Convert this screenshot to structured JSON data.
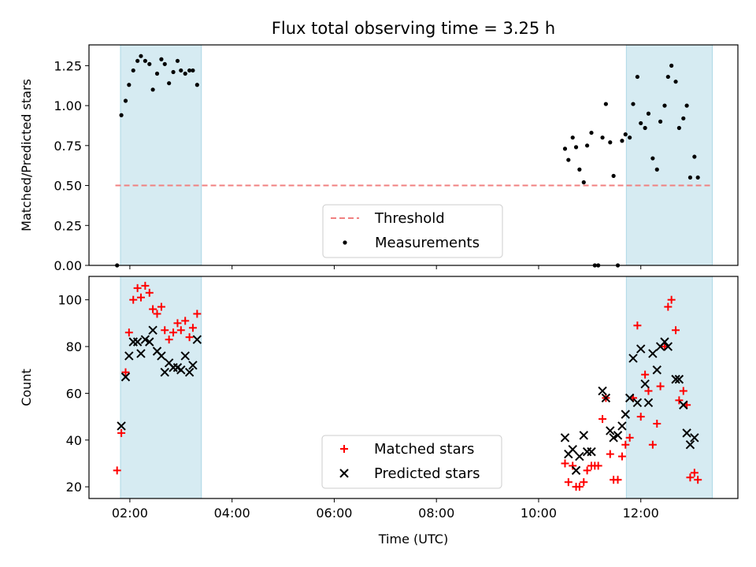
{
  "title": "Flux total observing time = 3.25 h",
  "colors": {
    "observing_band": "#add8e6",
    "threshold": "#f08080",
    "measurement": "#000000",
    "matched": "#ff0000",
    "predicted": "#000000"
  },
  "chart_data": [
    {
      "type": "scatter",
      "ylabel": "Matched/Predicted stars",
      "xlim": [
        "01:12",
        "13:54"
      ],
      "ylim": [
        0,
        1.38
      ],
      "yticks": [
        "0.00",
        "0.25",
        "0.50",
        "0.75",
        "1.00",
        "1.25"
      ],
      "observing_windows": [
        [
          "01:49",
          "03:24"
        ],
        [
          "11:43",
          "13:24"
        ]
      ],
      "threshold": {
        "label": "Threshold",
        "value": 0.5,
        "x_range": [
          "01:43",
          "13:24"
        ]
      },
      "legend": {
        "placement": "bottom-center",
        "entries": [
          "Threshold",
          "Measurements"
        ]
      },
      "series": [
        {
          "name": "Measurements",
          "points": [
            [
              "01:45",
              0.0
            ],
            [
              "01:50",
              0.94
            ],
            [
              "01:55",
              1.03
            ],
            [
              "01:59",
              1.13
            ],
            [
              "02:04",
              1.22
            ],
            [
              "02:09",
              1.28
            ],
            [
              "02:13",
              1.31
            ],
            [
              "02:18",
              1.28
            ],
            [
              "02:23",
              1.26
            ],
            [
              "02:27",
              1.1
            ],
            [
              "02:32",
              1.2
            ],
            [
              "02:37",
              1.29
            ],
            [
              "02:41",
              1.26
            ],
            [
              "02:46",
              1.14
            ],
            [
              "02:51",
              1.21
            ],
            [
              "02:56",
              1.28
            ],
            [
              "03:00",
              1.22
            ],
            [
              "03:05",
              1.2
            ],
            [
              "03:10",
              1.22
            ],
            [
              "03:14",
              1.22
            ],
            [
              "03:19",
              1.13
            ],
            [
              "10:31",
              0.73
            ],
            [
              "10:35",
              0.66
            ],
            [
              "10:40",
              0.8
            ],
            [
              "10:44",
              0.74
            ],
            [
              "10:48",
              0.6
            ],
            [
              "10:53",
              0.52
            ],
            [
              "10:57",
              0.75
            ],
            [
              "11:02",
              0.83
            ],
            [
              "11:06",
              0.0
            ],
            [
              "11:10",
              0.0
            ],
            [
              "11:15",
              0.8
            ],
            [
              "11:19",
              1.01
            ],
            [
              "11:24",
              0.77
            ],
            [
              "11:28",
              0.56
            ],
            [
              "11:33",
              0.0
            ],
            [
              "11:38",
              0.78
            ],
            [
              "11:42",
              0.82
            ],
            [
              "11:47",
              0.8
            ],
            [
              "11:51",
              1.01
            ],
            [
              "11:56",
              1.18
            ],
            [
              "12:00",
              0.89
            ],
            [
              "12:05",
              0.86
            ],
            [
              "12:09",
              0.95
            ],
            [
              "12:14",
              0.67
            ],
            [
              "12:19",
              0.6
            ],
            [
              "12:23",
              0.9
            ],
            [
              "12:28",
              1.0
            ],
            [
              "12:32",
              1.18
            ],
            [
              "12:36",
              1.25
            ],
            [
              "12:41",
              1.15
            ],
            [
              "12:45",
              0.86
            ],
            [
              "12:50",
              0.92
            ],
            [
              "12:54",
              1.0
            ],
            [
              "12:58",
              0.55
            ],
            [
              "13:03",
              0.68
            ],
            [
              "13:07",
              0.55
            ]
          ]
        }
      ]
    },
    {
      "type": "scatter",
      "ylabel": "Count",
      "xlabel": "Time (UTC)",
      "xlim": [
        "01:12",
        "13:54"
      ],
      "ylim": [
        15,
        110
      ],
      "yticks": [
        "20",
        "40",
        "60",
        "80",
        "100"
      ],
      "xticks": [
        "02:00",
        "04:00",
        "06:00",
        "08:00",
        "10:00",
        "12:00"
      ],
      "observing_windows": [
        [
          "01:49",
          "03:24"
        ],
        [
          "11:43",
          "13:24"
        ]
      ],
      "legend": {
        "placement": "bottom-center",
        "entries": [
          "Matched stars",
          "Predicted stars"
        ]
      },
      "series": [
        {
          "name": "Matched stars",
          "points": [
            [
              "01:45",
              27
            ],
            [
              "01:50",
              43
            ],
            [
              "01:55",
              69
            ],
            [
              "01:59",
              86
            ],
            [
              "02:04",
              100
            ],
            [
              "02:09",
              105
            ],
            [
              "02:13",
              101
            ],
            [
              "02:18",
              106
            ],
            [
              "02:23",
              103
            ],
            [
              "02:27",
              96
            ],
            [
              "02:32",
              94
            ],
            [
              "02:37",
              97
            ],
            [
              "02:41",
              87
            ],
            [
              "02:46",
              83
            ],
            [
              "02:51",
              86
            ],
            [
              "02:56",
              90
            ],
            [
              "03:00",
              87
            ],
            [
              "03:05",
              91
            ],
            [
              "03:10",
              84
            ],
            [
              "03:14",
              88
            ],
            [
              "03:19",
              94
            ],
            [
              "10:31",
              30
            ],
            [
              "10:35",
              22
            ],
            [
              "10:40",
              29
            ],
            [
              "10:44",
              20
            ],
            [
              "10:48",
              20
            ],
            [
              "10:53",
              22
            ],
            [
              "10:57",
              27
            ],
            [
              "11:02",
              29
            ],
            [
              "11:06",
              29
            ],
            [
              "11:10",
              29
            ],
            [
              "11:15",
              49
            ],
            [
              "11:19",
              58
            ],
            [
              "11:24",
              34
            ],
            [
              "11:28",
              23
            ],
            [
              "11:33",
              23
            ],
            [
              "11:38",
              33
            ],
            [
              "11:42",
              38
            ],
            [
              "11:47",
              41
            ],
            [
              "11:51",
              58
            ],
            [
              "11:56",
              89
            ],
            [
              "12:00",
              50
            ],
            [
              "12:05",
              68
            ],
            [
              "12:09",
              61
            ],
            [
              "12:14",
              38
            ],
            [
              "12:19",
              47
            ],
            [
              "12:23",
              63
            ],
            [
              "12:28",
              80
            ],
            [
              "12:32",
              97
            ],
            [
              "12:36",
              100
            ],
            [
              "12:41",
              87
            ],
            [
              "12:45",
              57
            ],
            [
              "12:50",
              61
            ],
            [
              "12:54",
              55
            ],
            [
              "12:58",
              24
            ],
            [
              "13:03",
              26
            ],
            [
              "13:07",
              23
            ]
          ]
        },
        {
          "name": "Predicted stars",
          "points": [
            [
              "01:50",
              46
            ],
            [
              "01:55",
              67
            ],
            [
              "01:59",
              76
            ],
            [
              "02:04",
              82
            ],
            [
              "02:09",
              82
            ],
            [
              "02:13",
              77
            ],
            [
              "02:18",
              83
            ],
            [
              "02:23",
              82
            ],
            [
              "02:27",
              87
            ],
            [
              "02:32",
              78
            ],
            [
              "02:37",
              76
            ],
            [
              "02:41",
              69
            ],
            [
              "02:46",
              73
            ],
            [
              "02:51",
              71
            ],
            [
              "02:56",
              71
            ],
            [
              "03:00",
              70
            ],
            [
              "03:05",
              76
            ],
            [
              "03:10",
              69
            ],
            [
              "03:14",
              72
            ],
            [
              "03:19",
              83
            ],
            [
              "10:31",
              41
            ],
            [
              "10:35",
              34
            ],
            [
              "10:40",
              36
            ],
            [
              "10:44",
              27
            ],
            [
              "10:48",
              33
            ],
            [
              "10:53",
              42
            ],
            [
              "10:57",
              35
            ],
            [
              "11:02",
              35
            ],
            [
              "11:15",
              61
            ],
            [
              "11:19",
              58
            ],
            [
              "11:24",
              44
            ],
            [
              "11:28",
              41
            ],
            [
              "11:33",
              42
            ],
            [
              "11:38",
              46
            ],
            [
              "11:42",
              51
            ],
            [
              "11:47",
              58
            ],
            [
              "11:51",
              75
            ],
            [
              "11:56",
              56
            ],
            [
              "12:00",
              79
            ],
            [
              "12:05",
              64
            ],
            [
              "12:09",
              56
            ],
            [
              "12:14",
              77
            ],
            [
              "12:19",
              70
            ],
            [
              "12:23",
              80
            ],
            [
              "12:28",
              82
            ],
            [
              "12:32",
              80
            ],
            [
              "12:41",
              66
            ],
            [
              "12:45",
              66
            ],
            [
              "12:50",
              55
            ],
            [
              "12:54",
              43
            ],
            [
              "12:58",
              38
            ],
            [
              "13:03",
              41
            ]
          ]
        }
      ]
    }
  ]
}
